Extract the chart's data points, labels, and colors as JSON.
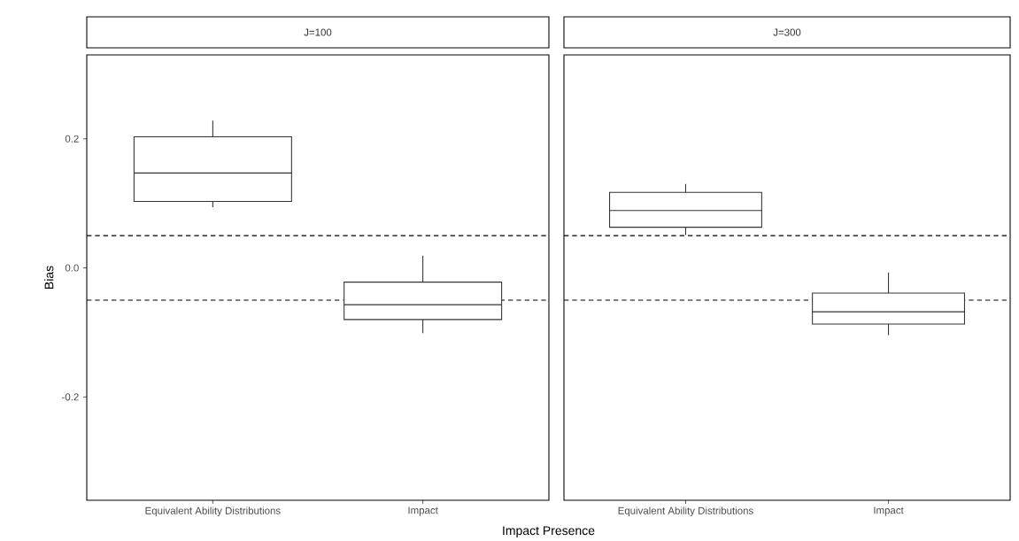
{
  "chart_data": [
    {
      "type": "box",
      "title": "J=100",
      "xlabel": "Impact Presence",
      "ylabel": "Bias",
      "categories": [
        "Equivalent Ability Distributions",
        "Impact"
      ],
      "boxes": [
        {
          "low": 0.094,
          "q1": 0.103,
          "median": 0.147,
          "q3": 0.203,
          "high": 0.228
        },
        {
          "low": -0.101,
          "q1": -0.08,
          "median": -0.057,
          "q3": -0.022,
          "high": 0.019
        }
      ],
      "ylim": [
        -0.36,
        0.33
      ],
      "yticks": [
        -0.2,
        {
          "value": 0,
          "label": "0.0"
        },
        0.2
      ],
      "ref_lines": [
        {
          "axis": "y",
          "value": 0.05,
          "color": "#000000",
          "line_style": "dashed"
        },
        {
          "axis": "y",
          "value": -0.05,
          "color": "#000000",
          "line_style": "dashed"
        }
      ]
    },
    {
      "type": "box",
      "title": "J=300",
      "categories": [
        "Equivalent Ability Distributions",
        "Impact"
      ],
      "boxes": [
        {
          "low": 0.051,
          "q1": 0.063,
          "median": 0.089,
          "q3": 0.117,
          "high": 0.13
        },
        {
          "low": -0.104,
          "q1": -0.087,
          "median": -0.068,
          "q3": -0.039,
          "high": -0.007
        }
      ],
      "ylim": [
        -0.36,
        0.33
      ],
      "tick_labels": "x",
      "ref_lines": [
        {
          "axis": "y",
          "value": 0.05,
          "color": "#000000",
          "line_style": "dashed"
        },
        {
          "axis": "y",
          "value": -0.05,
          "color": "#000000",
          "line_style": "dashed"
        }
      ]
    }
  ]
}
